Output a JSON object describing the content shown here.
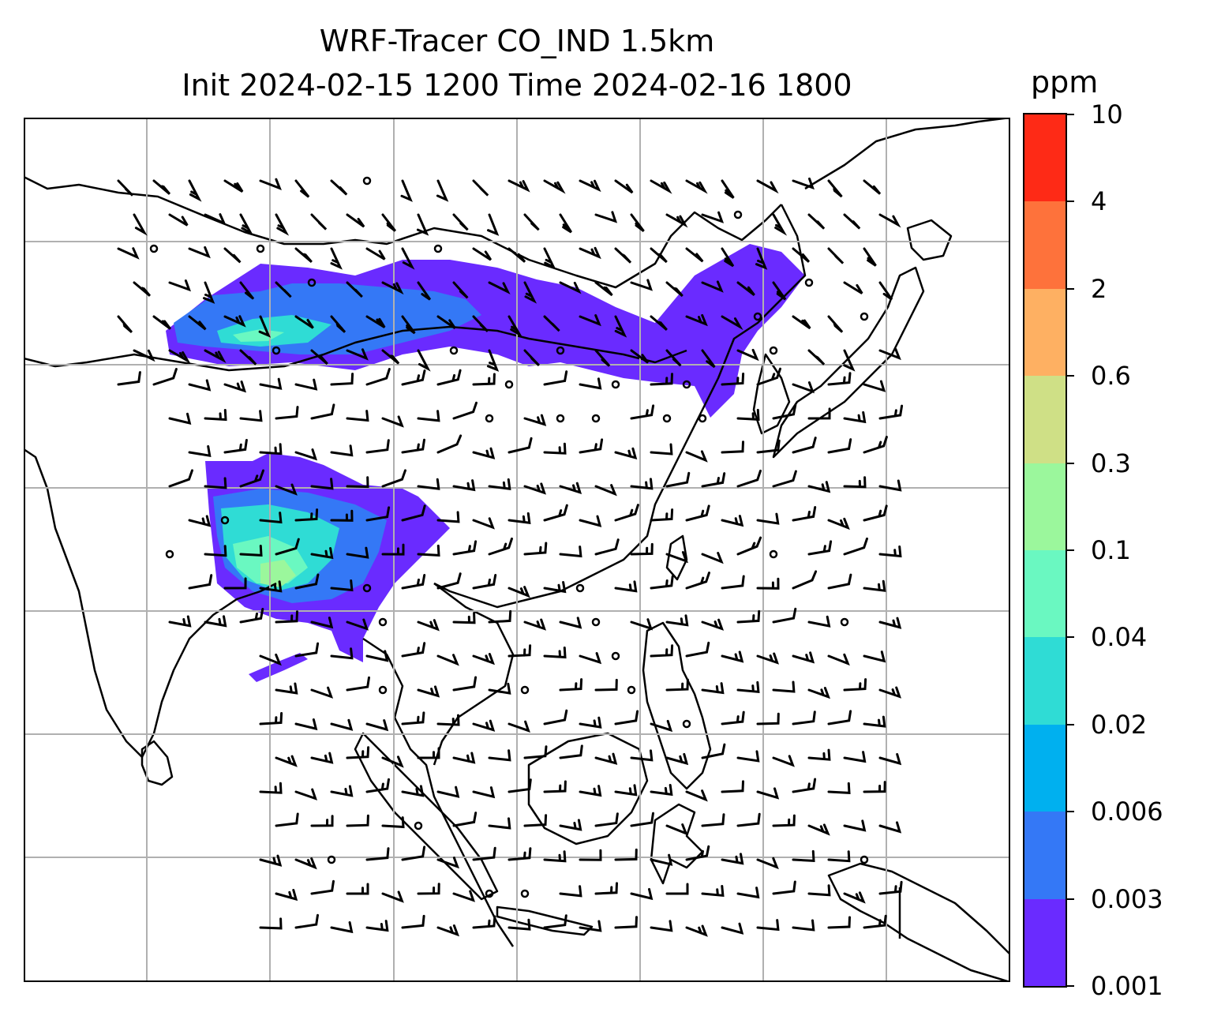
{
  "title": {
    "line1": "WRF-Tracer CO_IND 1.5km",
    "line2": "Init 2024-02-15 1200 Time 2024-02-16 1800"
  },
  "colorbar": {
    "unit": "ppm",
    "levels": [
      "0.001",
      "0.003",
      "0.006",
      "0.02",
      "0.04",
      "0.1",
      "0.3",
      "0.6",
      "2",
      "4",
      "10"
    ],
    "colors": [
      "#6a2bff",
      "#3478f6",
      "#00b0ef",
      "#2fdcd5",
      "#6af8c1",
      "#9bf79c",
      "#cfe086",
      "#feb062",
      "#fe723b",
      "#fe2a16"
    ]
  },
  "map": {
    "gridlines": "on",
    "gridline_color": "#b0b0b0",
    "coastline_color": "#000000"
  }
}
